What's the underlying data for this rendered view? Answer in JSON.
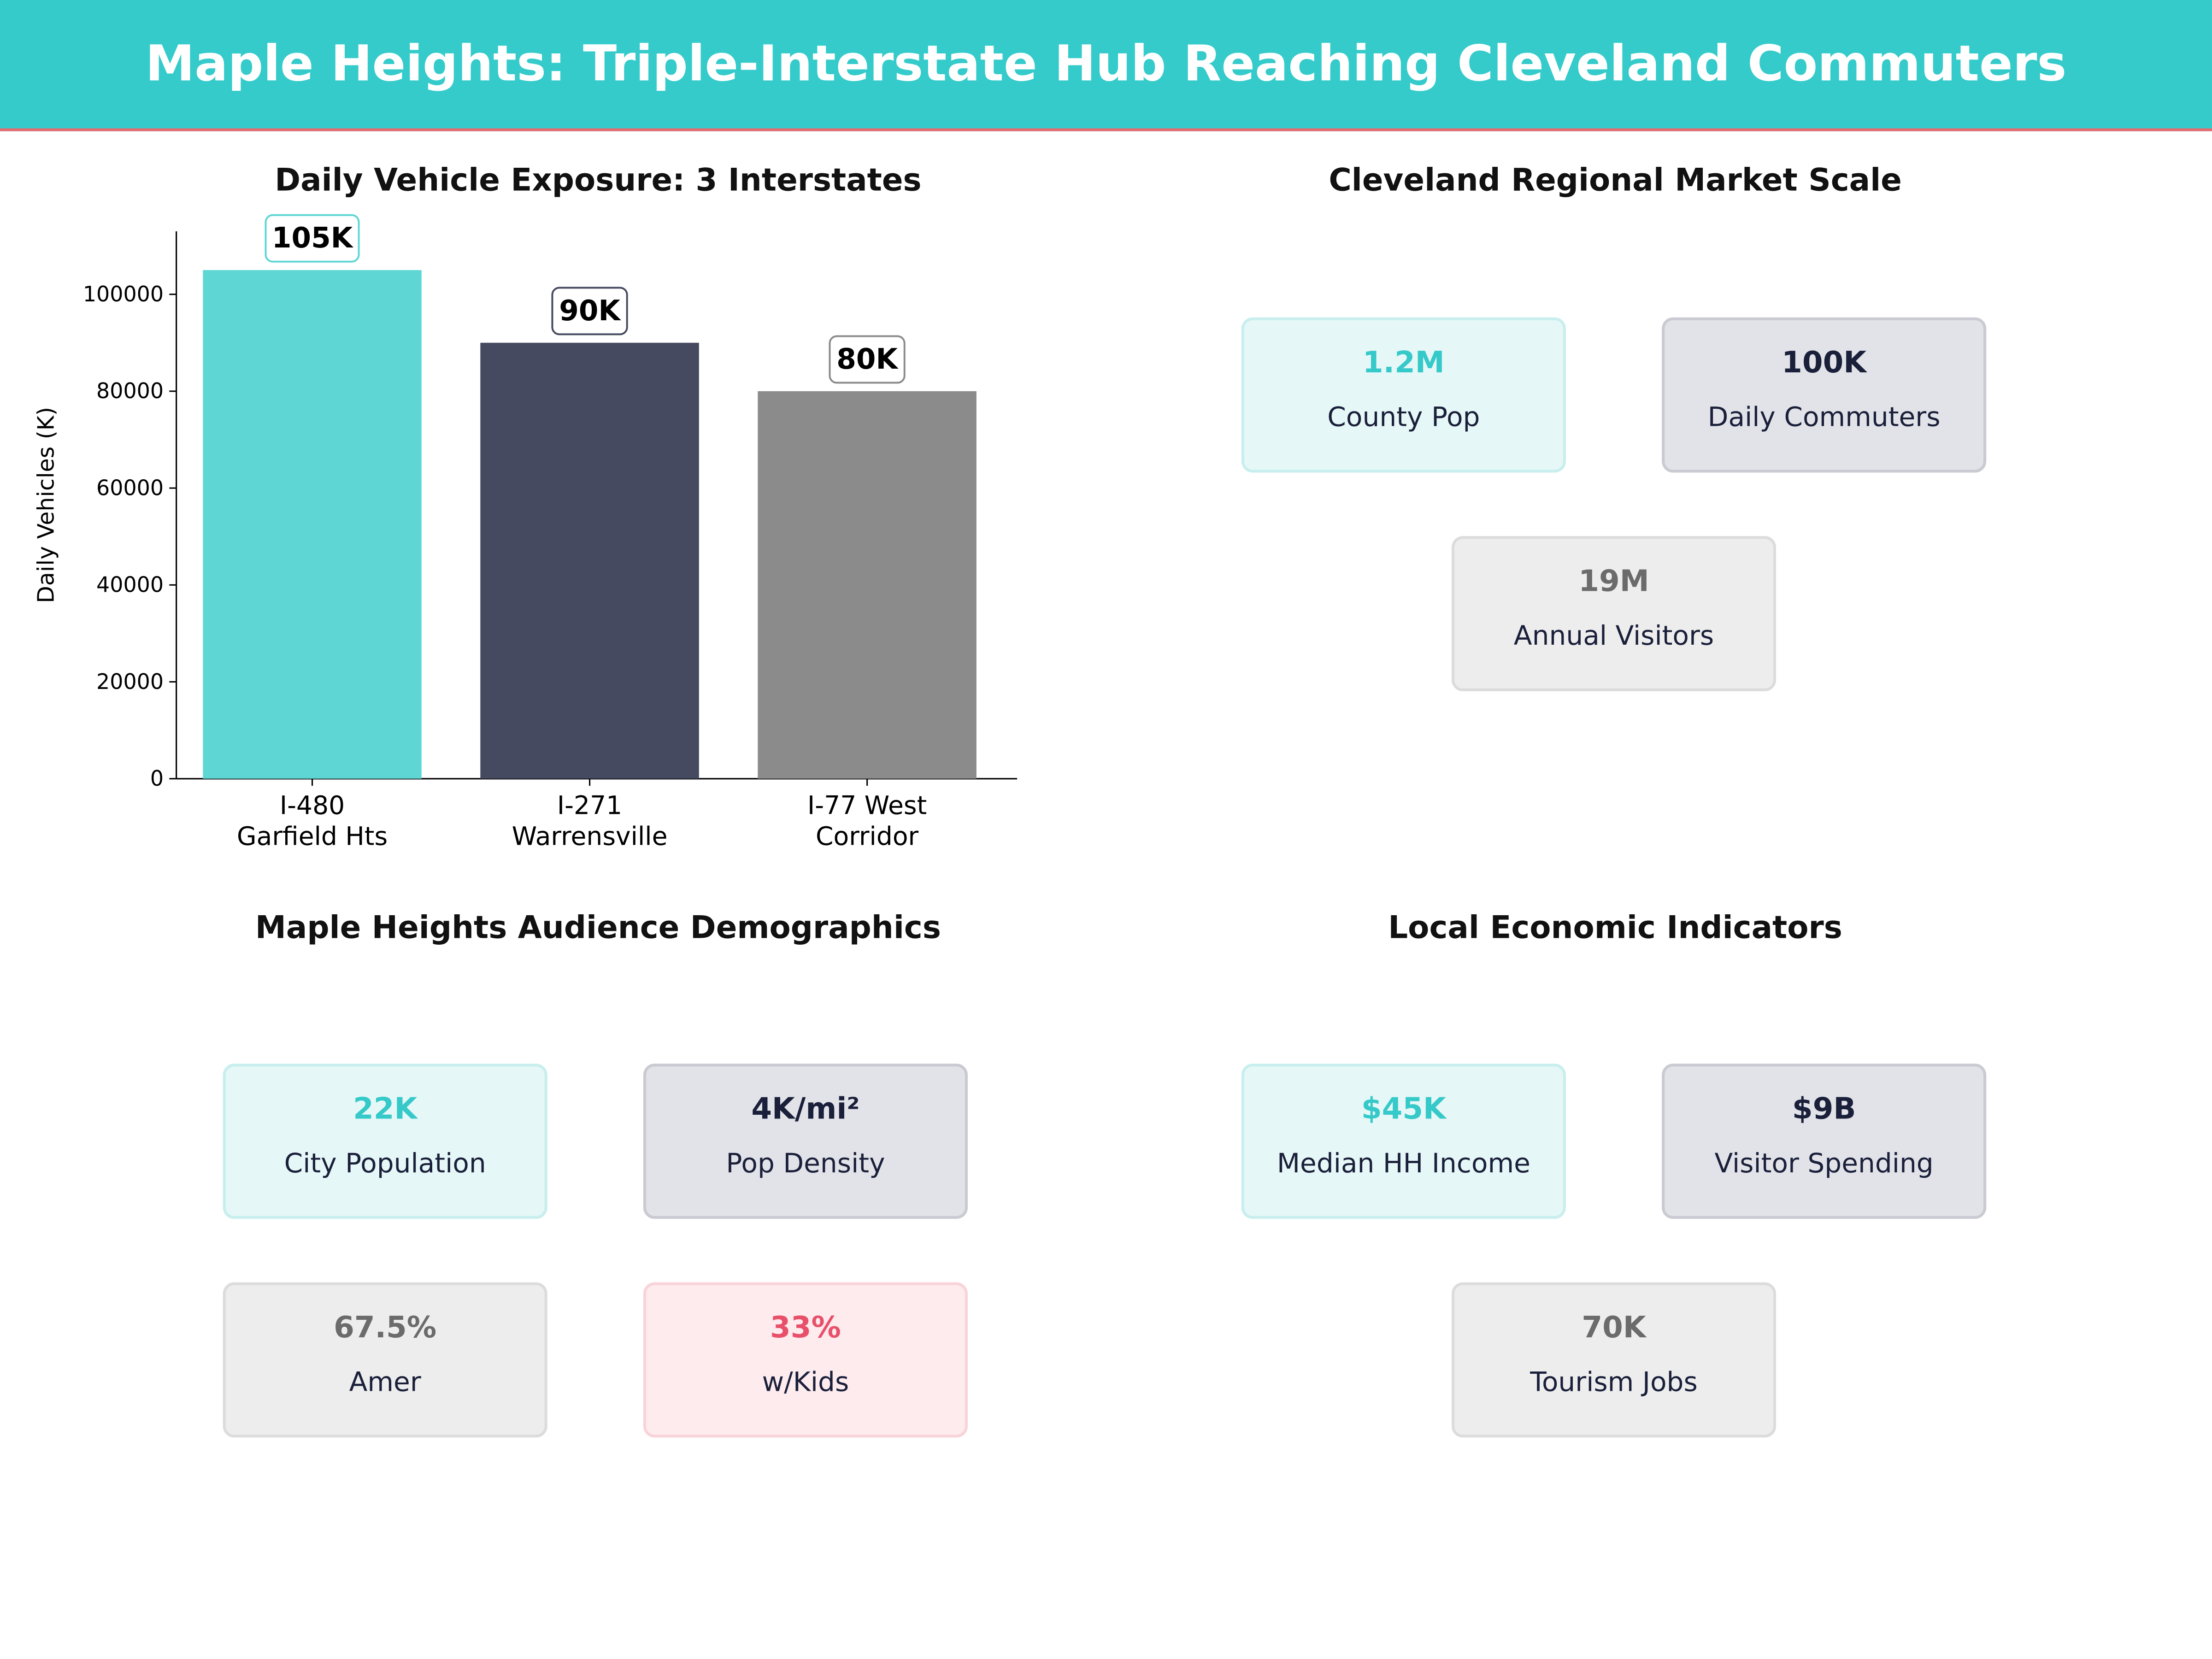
{
  "header": {
    "title": "Maple Heights: Triple-Interstate Hub Reaching Cleveland Commuters"
  },
  "chart_data": {
    "type": "bar",
    "title": "Daily Vehicle Exposure: 3 Interstates",
    "xlabel": "",
    "ylabel": "Daily Vehicles (K)",
    "categories": [
      [
        "I-480",
        "Garfield Hts"
      ],
      [
        "I-271",
        "Warrensville"
      ],
      [
        "I-77 West",
        "Corridor"
      ]
    ],
    "values": [
      105000,
      90000,
      80000
    ],
    "data_labels": [
      "105K",
      "90K",
      "80K"
    ],
    "colors": [
      "#5dd6d4",
      "#464a60",
      "#8b8b8b"
    ],
    "ylim": [
      0,
      113000
    ],
    "yticks": [
      0,
      20000,
      40000,
      60000,
      80000,
      100000
    ],
    "grid": false
  },
  "market": {
    "title": "Cleveland Regional Market Scale",
    "cards": [
      {
        "value": "1.2M",
        "label": "County Pop",
        "style": "teal"
      },
      {
        "value": "100K",
        "label": "Daily Commuters",
        "style": "navy"
      },
      {
        "value": "19M",
        "label": "Annual Visitors",
        "style": "gray"
      }
    ]
  },
  "demographics": {
    "title": "Maple Heights Audience Demographics",
    "cards": [
      {
        "value": "22K",
        "label": "City Population",
        "style": "teal"
      },
      {
        "value": "4K/mi²",
        "label": "Pop Density",
        "style": "navy"
      },
      {
        "value": "67.5%",
        "label": "Amer",
        "style": "gray"
      },
      {
        "value": "33%",
        "label": "w/Kids",
        "style": "pink"
      }
    ]
  },
  "economic": {
    "title": "Local Economic Indicators",
    "cards": [
      {
        "value": "$45K",
        "label": "Median HH Income",
        "style": "teal"
      },
      {
        "value": "$9B",
        "label": "Visitor Spending",
        "style": "navy"
      },
      {
        "value": "70K",
        "label": "Tourism Jobs",
        "style": "gray"
      }
    ]
  }
}
